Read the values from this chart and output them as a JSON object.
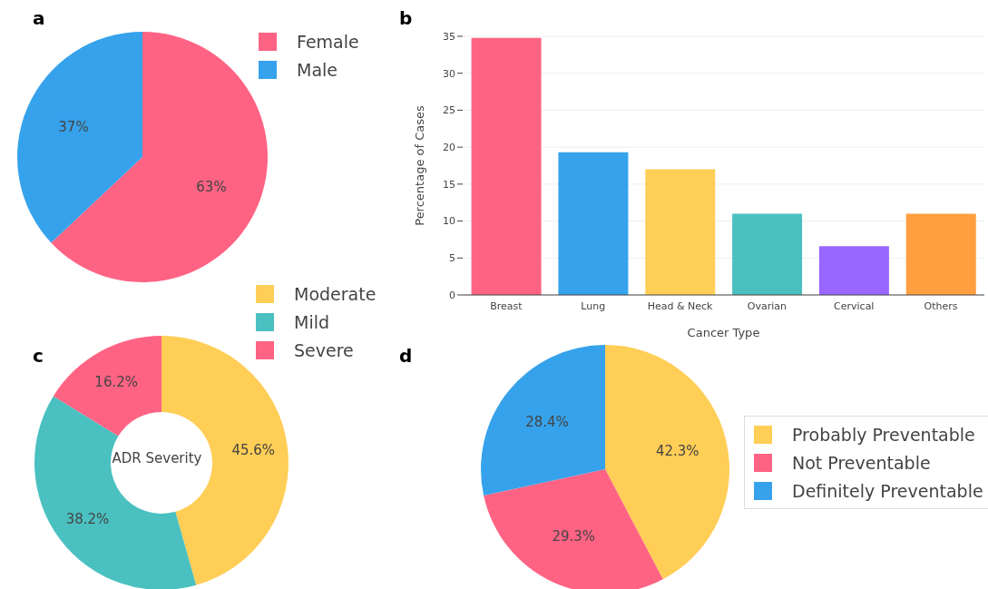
{
  "chart_data": [
    {
      "type": "pie",
      "annotations": [
        "a"
      ],
      "categories": [
        "Female",
        "Male"
      ],
      "values": [
        63,
        37
      ],
      "value_labels": [
        "63%",
        "37%"
      ],
      "colors": [
        "#ff6384",
        "#36a2eb"
      ],
      "legend": "top right"
    },
    {
      "type": "bar",
      "annotations": [
        "b"
      ],
      "xlabel": "Cancer Type",
      "ylabel": "Percentage of Cases",
      "categories": [
        "Breast",
        "Lung",
        "Head & Neck",
        "Ovarian",
        "Cervical",
        "Others"
      ],
      "values": [
        34.8,
        19.3,
        17.0,
        11.0,
        6.6,
        11.0
      ],
      "colors": [
        "#ff6384",
        "#36a2eb",
        "#ffce56",
        "#4bc0c0",
        "#9966ff",
        "#ff9f40"
      ],
      "ylim": [
        0,
        35
      ],
      "yticks": [
        0,
        5,
        10,
        15,
        20,
        25,
        30,
        35
      ],
      "grid": "y"
    },
    {
      "type": "donut",
      "annotations": [
        "c"
      ],
      "title": "ADR Severity",
      "categories": [
        "Moderate",
        "Mild",
        "Severe"
      ],
      "values": [
        45.6,
        38.2,
        16.2
      ],
      "value_labels": [
        "45.6%",
        "38.2%",
        "16.2%"
      ],
      "colors": [
        "#ffce56",
        "#4bc0c0",
        "#ff6384"
      ],
      "legend": "top right"
    },
    {
      "type": "pie",
      "annotations": [
        "d"
      ],
      "categories": [
        "Probably Preventable",
        "Not Preventable",
        "Definitely Preventable"
      ],
      "values": [
        42.3,
        29.3,
        28.4
      ],
      "value_labels": [
        "42.3%",
        "29.3%",
        "28.4%"
      ],
      "colors": [
        "#ffce56",
        "#ff6384",
        "#36a2eb"
      ],
      "legend": "right"
    }
  ]
}
